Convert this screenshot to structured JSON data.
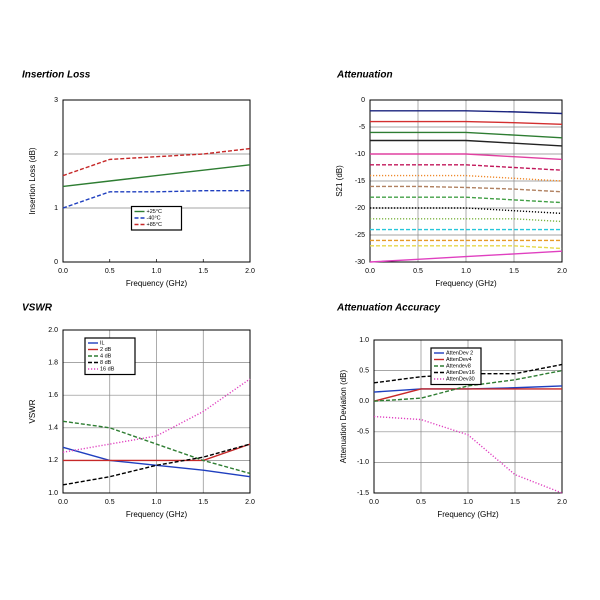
{
  "chart_data": [
    {
      "type": "line",
      "title": "Insertion Loss",
      "xlabel": "Frequency (GHz)",
      "ylabel": "Insertion Loss (dB)",
      "x": [
        0,
        0.5,
        1,
        1.5,
        2
      ],
      "xlim": [
        0,
        2
      ],
      "ylim": [
        0,
        3
      ],
      "xticks": [
        {
          "value": 0,
          "label": "0.0"
        },
        0.5,
        {
          "value": 1,
          "label": "1.0"
        },
        1.5,
        {
          "value": 2,
          "label": "2.0"
        }
      ],
      "yticks": [
        0,
        1,
        2,
        3
      ],
      "grid": "y",
      "legend": "lower center",
      "series": [
        {
          "name": "+25°C",
          "color": "#2e7d32",
          "dash": "solid",
          "values": [
            1.4,
            1.5,
            1.6,
            1.7,
            1.8
          ]
        },
        {
          "name": "-40°C",
          "color": "#1f3fbf",
          "dash": "dashed",
          "values": [
            1.0,
            1.3,
            1.3,
            1.32,
            1.32
          ]
        },
        {
          "name": "+85°C",
          "color": "#c62828",
          "dash": "dashed",
          "values": [
            1.6,
            1.9,
            1.95,
            2.0,
            2.1
          ]
        }
      ]
    },
    {
      "type": "line",
      "title": "Attenuation",
      "xlabel": "Frequency (GHz)",
      "ylabel": "S21 (dB)",
      "x": [
        0,
        0.5,
        1,
        1.5,
        2
      ],
      "xlim": [
        0,
        2
      ],
      "ylim": [
        -30,
        0
      ],
      "xticks": [
        {
          "value": 0,
          "label": "0.0"
        },
        0.5,
        {
          "value": 1,
          "label": "1.0"
        },
        1.5,
        {
          "value": 2,
          "label": "2.0"
        }
      ],
      "yticks": [
        0,
        -5,
        -10,
        -15,
        -20,
        -25,
        -30
      ],
      "grid": "both",
      "series": [
        {
          "color": "#1a237e",
          "dash": "solid",
          "values": [
            -2,
            -2,
            -2,
            -2.2,
            -2.5
          ]
        },
        {
          "color": "#d32f2f",
          "dash": "solid",
          "values": [
            -4,
            -4,
            -4,
            -4.2,
            -4.5
          ]
        },
        {
          "color": "#2e7d32",
          "dash": "solid",
          "values": [
            -6,
            -6,
            -6,
            -6.5,
            -7
          ]
        },
        {
          "color": "#222222",
          "dash": "solid",
          "values": [
            -7.5,
            -7.5,
            -7.5,
            -8,
            -8.5
          ]
        },
        {
          "color": "#e040a0",
          "dash": "solid",
          "values": [
            -10,
            -10,
            -10,
            -10.5,
            -11
          ]
        },
        {
          "color": "#c2185b",
          "dash": "dashed",
          "values": [
            -12,
            -12,
            -12,
            -12.5,
            -13
          ]
        },
        {
          "color": "#ef8a2c",
          "dash": "dotted",
          "values": [
            -14,
            -14,
            -14,
            -14.5,
            -15
          ]
        },
        {
          "color": "#b08060",
          "dash": "dashed",
          "values": [
            -16,
            -16,
            -16.2,
            -16.5,
            -17
          ]
        },
        {
          "color": "#43a047",
          "dash": "dashed",
          "values": [
            -18,
            -18,
            -18,
            -18.5,
            -19
          ]
        },
        {
          "color": "#000000",
          "dash": "dotted",
          "values": [
            -20,
            -20,
            -20,
            -20.5,
            -21
          ]
        },
        {
          "color": "#7cb342",
          "dash": "dotted",
          "values": [
            -22,
            -22,
            -22,
            -22,
            -22.5
          ]
        },
        {
          "color": "#26c6da",
          "dash": "dashed",
          "values": [
            -24,
            -24,
            -24,
            -24,
            -24
          ]
        },
        {
          "color": "#e69a28",
          "dash": "dashed",
          "values": [
            -26,
            -26,
            -26,
            -26,
            -26
          ]
        },
        {
          "color": "#e6d84a",
          "dash": "dashed",
          "values": [
            -27,
            -27,
            -27,
            -27,
            -27.5
          ]
        },
        {
          "color": "#e040c0",
          "dash": "solid",
          "values": [
            -30,
            -29.5,
            -29,
            -28.5,
            -28
          ]
        }
      ]
    },
    {
      "type": "line",
      "title": "VSWR",
      "xlabel": "Frequency (GHz)",
      "ylabel": "VSWR",
      "x": [
        0,
        0.5,
        1,
        1.5,
        2
      ],
      "xlim": [
        0,
        2
      ],
      "ylim": [
        1,
        2
      ],
      "xticks": [
        {
          "value": 0,
          "label": "0.0"
        },
        0.5,
        {
          "value": 1,
          "label": "1.0"
        },
        1.5,
        {
          "value": 2,
          "label": "2.0"
        }
      ],
      "yticks": [
        {
          "value": 1,
          "label": "1.0"
        },
        1.2,
        1.4,
        1.6,
        1.8,
        {
          "value": 2,
          "label": "2.0"
        }
      ],
      "grid": "both",
      "legend": "upper left",
      "series": [
        {
          "name": "IL",
          "color": "#1f3fbf",
          "dash": "solid",
          "values": [
            1.28,
            1.2,
            1.17,
            1.14,
            1.1
          ]
        },
        {
          "name": "2 dB",
          "color": "#c62828",
          "dash": "solid",
          "values": [
            1.2,
            1.2,
            1.2,
            1.2,
            1.3
          ]
        },
        {
          "name": "4 dB",
          "color": "#2e7d32",
          "dash": "dashed",
          "values": [
            1.44,
            1.4,
            1.3,
            1.2,
            1.12
          ]
        },
        {
          "name": "8 dB",
          "color": "#000000",
          "dash": "dashed",
          "values": [
            1.05,
            1.1,
            1.17,
            1.22,
            1.3
          ]
        },
        {
          "name": "16 dB",
          "color": "#e040c0",
          "dash": "dotted",
          "values": [
            1.25,
            1.3,
            1.35,
            1.5,
            1.7
          ]
        }
      ]
    },
    {
      "type": "line",
      "title": "Attenuation Accuracy",
      "xlabel": "Frequency (GHz)",
      "ylabel": "Attenuation Deviation (dB)",
      "x": [
        0,
        0.5,
        1,
        1.5,
        2
      ],
      "xlim": [
        0,
        2
      ],
      "ylim": [
        -1.5,
        1
      ],
      "xticks": [
        {
          "value": 0,
          "label": "0.0"
        },
        0.5,
        {
          "value": 1,
          "label": "1.0"
        },
        1.5,
        {
          "value": 2,
          "label": "2.0"
        }
      ],
      "yticks": [
        {
          "value": 1,
          "label": "1.0"
        },
        0.5,
        {
          "value": 0,
          "label": "0.0"
        },
        -0.5,
        {
          "value": -1,
          "label": "-1.0"
        },
        -1.5
      ],
      "grid": "both",
      "legend": "upper center",
      "series": [
        {
          "name": "AttenDev 2",
          "color": "#1f3fbf",
          "dash": "solid",
          "values": [
            0.15,
            0.2,
            0.2,
            0.22,
            0.25
          ]
        },
        {
          "name": "AttenDev4",
          "color": "#c62828",
          "dash": "solid",
          "values": [
            0.0,
            0.2,
            0.2,
            0.2,
            0.2
          ]
        },
        {
          "name": "Attendev8",
          "color": "#2e7d32",
          "dash": "dashed",
          "values": [
            0.0,
            0.05,
            0.25,
            0.35,
            0.5
          ]
        },
        {
          "name": "AttenDev16",
          "color": "#000000",
          "dash": "dashed",
          "values": [
            0.3,
            0.4,
            0.45,
            0.45,
            0.6
          ]
        },
        {
          "name": "AttenDev30",
          "color": "#e040c0",
          "dash": "dotted",
          "values": [
            -0.25,
            -0.3,
            -0.55,
            -1.2,
            -1.5
          ]
        }
      ]
    }
  ]
}
